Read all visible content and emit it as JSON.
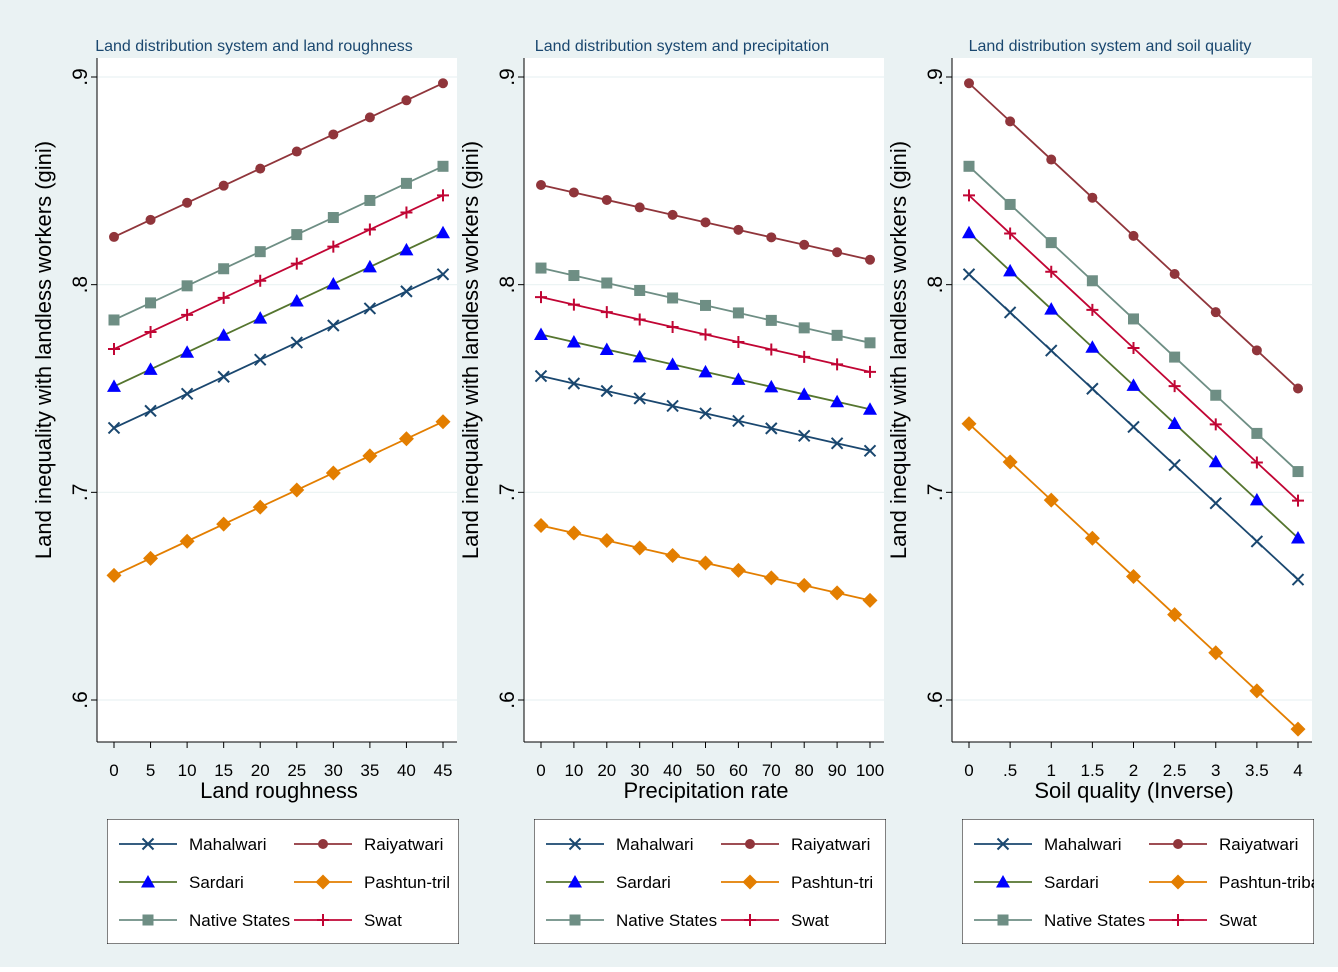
{
  "series_styles": [
    {
      "name": "Mahalwari",
      "color": "#1a476f",
      "marker": "x"
    },
    {
      "name": "Raiyatwari",
      "color": "#90353b",
      "marker": "circle"
    },
    {
      "name": "Sardari",
      "color": "#55752f",
      "marker_color": "#0000ff",
      "marker": "triangle"
    },
    {
      "name": "Pashtun-tribal",
      "color": "#e37e00",
      "marker": "diamond"
    },
    {
      "name": "Native States",
      "color": "#6e8e84",
      "marker": "square"
    },
    {
      "name": "Swat",
      "color": "#c10534",
      "marker": "plus"
    }
  ],
  "chart_data": [
    {
      "type": "line",
      "title": "Land distribution system and land roughness",
      "xlabel": "Land roughness",
      "ylabel": "Land inequality with landless workers (gini)",
      "x": [
        0,
        5,
        10,
        15,
        20,
        25,
        30,
        35,
        40,
        45
      ],
      "x_tick_labels": [
        "0",
        "5",
        "10",
        "15",
        "20",
        "25",
        "30",
        "35",
        "40",
        "45"
      ],
      "xlim": [
        0,
        45
      ],
      "ylim": [
        0.6,
        0.9
      ],
      "y_tick_values": [
        0.6,
        0.7,
        0.8,
        0.9
      ],
      "y_tick_labels": [
        ".6",
        ".7",
        ".8",
        ".9"
      ],
      "grid": true,
      "legend_position": "bottom",
      "legend_labels": [
        "Mahalwari",
        "Raiyatwari",
        "Sardari",
        "Pashtun-tril",
        "Native States",
        "Swat"
      ],
      "series": [
        {
          "name": "Mahalwari",
          "start": 0.731,
          "end": 0.805
        },
        {
          "name": "Raiyatwari",
          "start": 0.823,
          "end": 0.897
        },
        {
          "name": "Sardari",
          "start": 0.751,
          "end": 0.825
        },
        {
          "name": "Pashtun-tribal",
          "start": 0.66,
          "end": 0.734
        },
        {
          "name": "Native States",
          "start": 0.783,
          "end": 0.857
        },
        {
          "name": "Swat",
          "start": 0.769,
          "end": 0.843
        }
      ]
    },
    {
      "type": "line",
      "title": "Land distribution system and precipitation",
      "xlabel": "Precipitation rate",
      "ylabel": "Land inequality with landless workers (gini)",
      "x": [
        0,
        10,
        20,
        30,
        40,
        50,
        60,
        70,
        80,
        90,
        100
      ],
      "x_tick_labels": [
        "0",
        "10",
        "20",
        "30",
        "40",
        "50",
        "60",
        "70",
        "80",
        "90",
        "100"
      ],
      "xlim": [
        0,
        100
      ],
      "ylim": [
        0.6,
        0.9
      ],
      "y_tick_values": [
        0.6,
        0.7,
        0.8,
        0.9
      ],
      "y_tick_labels": [
        ".6",
        ".7",
        ".8",
        ".9"
      ],
      "grid": true,
      "legend_position": "bottom",
      "legend_labels": [
        "Mahalwari",
        "Raiyatwari",
        "Sardari",
        "Pashtun-tri",
        "Native States",
        "Swat"
      ],
      "series": [
        {
          "name": "Mahalwari",
          "start": 0.756,
          "end": 0.72
        },
        {
          "name": "Raiyatwari",
          "start": 0.848,
          "end": 0.812
        },
        {
          "name": "Sardari",
          "start": 0.776,
          "end": 0.74
        },
        {
          "name": "Pashtun-tribal",
          "start": 0.684,
          "end": 0.648
        },
        {
          "name": "Native States",
          "start": 0.808,
          "end": 0.772
        },
        {
          "name": "Swat",
          "start": 0.794,
          "end": 0.758
        }
      ]
    },
    {
      "type": "line",
      "title": "Land distribution system and soil quality",
      "xlabel": "Soil quality (Inverse)",
      "ylabel": "Land inequality with landless workers (gini)",
      "x": [
        0,
        0.5,
        1,
        1.5,
        2,
        2.5,
        3,
        3.5,
        4
      ],
      "x_tick_labels": [
        "0",
        ".5",
        "1",
        "1.5",
        "2",
        "2.5",
        "3",
        "3.5",
        "4"
      ],
      "xlim": [
        0,
        4
      ],
      "ylim": [
        0.6,
        0.9
      ],
      "y_tick_values": [
        0.6,
        0.7,
        0.8,
        0.9
      ],
      "y_tick_labels": [
        ".6",
        ".7",
        ".8",
        ".9"
      ],
      "grid": true,
      "legend_position": "bottom",
      "legend_labels": [
        "Mahalwari",
        "Raiyatwari",
        "Sardari",
        "Pashtun-tribal",
        "Native States",
        "Swat"
      ],
      "series": [
        {
          "name": "Mahalwari",
          "start": 0.805,
          "end": 0.658
        },
        {
          "name": "Raiyatwari",
          "start": 0.897,
          "end": 0.75
        },
        {
          "name": "Sardari",
          "start": 0.825,
          "end": 0.678
        },
        {
          "name": "Pashtun-tribal",
          "start": 0.733,
          "end": 0.586
        },
        {
          "name": "Native States",
          "start": 0.857,
          "end": 0.71
        },
        {
          "name": "Swat",
          "start": 0.843,
          "end": 0.696
        }
      ]
    }
  ]
}
